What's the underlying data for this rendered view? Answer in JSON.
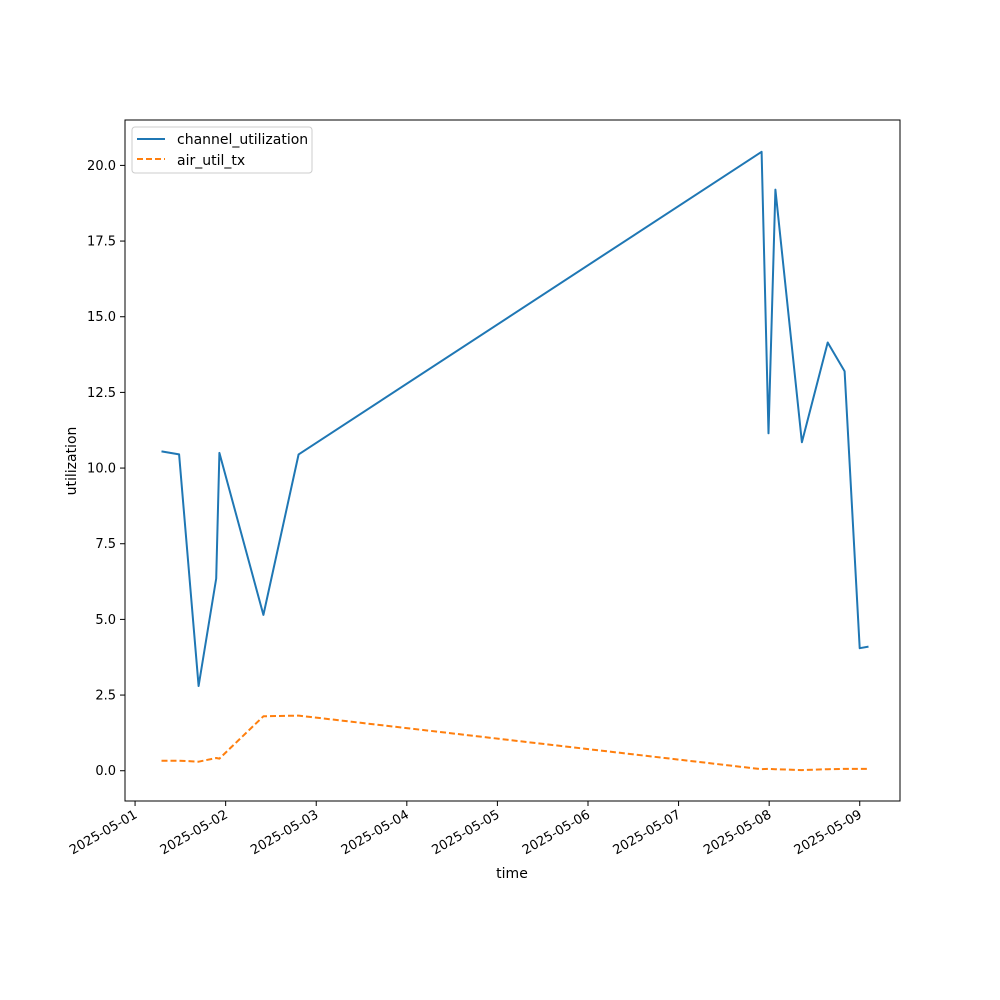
{
  "chart_data": {
    "type": "line",
    "xlabel": "time",
    "ylabel": "utilization",
    "xlim": [
      "2025-05-00T21:20",
      "2025-05-09T10:40"
    ],
    "ylim": [
      -1.0,
      21.5
    ],
    "yticks": [
      0.0,
      2.5,
      5.0,
      7.5,
      10.0,
      12.5,
      15.0,
      17.5,
      20.0
    ],
    "ytick_labels": [
      "0.0",
      "2.5",
      "5.0",
      "7.5",
      "10.0",
      "12.5",
      "15.0",
      "17.5",
      "20.0"
    ],
    "xticks": [
      "2025-05-01",
      "2025-05-02",
      "2025-05-03",
      "2025-05-04",
      "2025-05-05",
      "2025-05-06",
      "2025-05-07",
      "2025-05-08",
      "2025-05-09"
    ],
    "grid": false,
    "legend_position": "top-left",
    "series": [
      {
        "name": "channel_utilization",
        "color": "#1f77b4",
        "style": "solid",
        "x": [
          "2025-05-01T07:00",
          "2025-05-01T11:40",
          "2025-05-01T16:50",
          "2025-05-01T21:30",
          "2025-05-01T22:20",
          "2025-05-02T10:00",
          "2025-05-02T19:20",
          "2025-05-07T22:00",
          "2025-05-07T23:50",
          "2025-05-08T01:40",
          "2025-05-08T08:40",
          "2025-05-08T15:30",
          "2025-05-08T20:00",
          "2025-05-09T00:00",
          "2025-05-09T02:20"
        ],
        "values": [
          10.55,
          10.45,
          2.8,
          6.35,
          10.5,
          5.15,
          10.45,
          20.45,
          11.15,
          19.2,
          10.85,
          14.15,
          13.2,
          4.05,
          4.1
        ]
      },
      {
        "name": "air_util_tx",
        "color": "#ff7f0e",
        "style": "dashed",
        "x": [
          "2025-05-01T07:00",
          "2025-05-01T11:40",
          "2025-05-01T16:50",
          "2025-05-01T21:30",
          "2025-05-01T22:20",
          "2025-05-02T10:00",
          "2025-05-02T19:20",
          "2025-05-07T22:00",
          "2025-05-07T23:50",
          "2025-05-08T01:40",
          "2025-05-08T08:40",
          "2025-05-08T15:30",
          "2025-05-08T20:00",
          "2025-05-09T00:00",
          "2025-05-09T02:20"
        ],
        "values": [
          0.33,
          0.33,
          0.3,
          0.42,
          0.4,
          1.8,
          1.82,
          0.05,
          0.06,
          0.05,
          0.02,
          0.05,
          0.06,
          0.06,
          0.06
        ]
      }
    ]
  }
}
